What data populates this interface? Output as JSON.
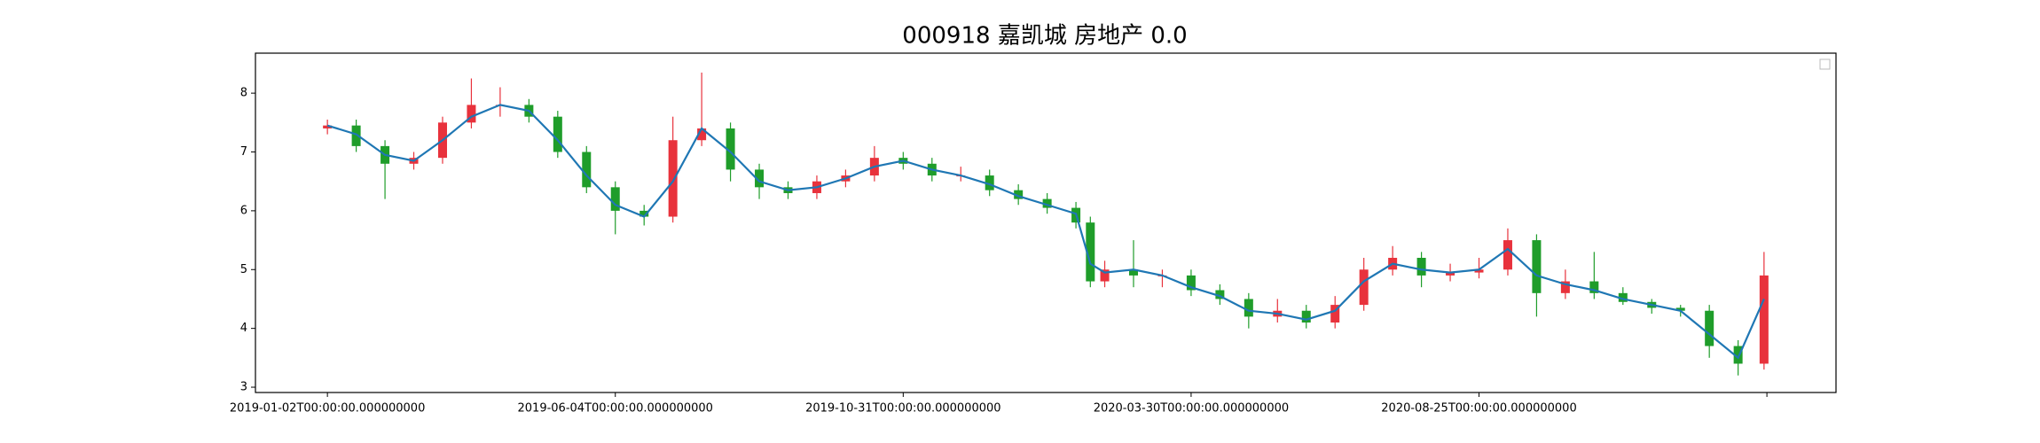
{
  "chart_data": {
    "type": "candlestick",
    "title": "000918 嘉凯城 房地产 0.0",
    "x": [
      0,
      10,
      20,
      30,
      40,
      50,
      60,
      70,
      80,
      90,
      100,
      110,
      120,
      130,
      140,
      150,
      160,
      170,
      180,
      190,
      200,
      210,
      220,
      230,
      240,
      250,
      260,
      265,
      270,
      280,
      290,
      300,
      310,
      320,
      330,
      340,
      350,
      360,
      370,
      380,
      390,
      400,
      410,
      420,
      430,
      440,
      450,
      460,
      470,
      480,
      490,
      499
    ],
    "open": [
      7.4,
      7.45,
      7.1,
      6.8,
      6.9,
      7.5,
      7.8,
      7.8,
      7.6,
      7.0,
      6.4,
      6.0,
      5.9,
      7.2,
      7.4,
      6.7,
      6.4,
      6.3,
      6.5,
      6.6,
      6.9,
      6.8,
      6.6,
      6.6,
      6.35,
      6.2,
      6.05,
      5.8,
      4.8,
      5.0,
      4.9,
      4.9,
      4.65,
      4.5,
      4.2,
      4.3,
      4.1,
      4.4,
      5.0,
      5.2,
      4.9,
      4.95,
      5.0,
      5.5,
      4.6,
      4.8,
      4.6,
      4.45,
      4.35,
      4.3,
      3.7,
      3.4
    ],
    "high": [
      7.55,
      7.55,
      7.2,
      7.0,
      7.6,
      8.25,
      8.1,
      7.9,
      7.7,
      7.1,
      6.5,
      6.1,
      7.6,
      8.35,
      7.5,
      6.8,
      6.5,
      6.6,
      6.7,
      7.1,
      7.0,
      6.9,
      6.75,
      6.7,
      6.45,
      6.3,
      6.15,
      5.9,
      5.15,
      5.5,
      5.0,
      5.0,
      4.75,
      4.6,
      4.5,
      4.4,
      4.55,
      5.2,
      5.4,
      5.3,
      5.1,
      5.2,
      5.7,
      5.6,
      5.0,
      5.3,
      4.7,
      4.5,
      4.4,
      4.4,
      3.8,
      5.3
    ],
    "low": [
      7.3,
      7.0,
      6.2,
      6.7,
      6.8,
      7.4,
      7.6,
      7.5,
      6.9,
      6.3,
      5.6,
      5.75,
      5.8,
      7.1,
      6.5,
      6.2,
      6.2,
      6.2,
      6.4,
      6.5,
      6.7,
      6.5,
      6.5,
      6.25,
      6.1,
      5.95,
      5.7,
      4.7,
      4.7,
      4.7,
      4.7,
      4.55,
      4.4,
      4.0,
      4.1,
      4.0,
      4.0,
      4.3,
      4.9,
      4.7,
      4.8,
      4.85,
      4.9,
      4.2,
      4.5,
      4.5,
      4.4,
      4.25,
      4.2,
      3.5,
      3.2,
      3.3
    ],
    "close": [
      7.45,
      7.1,
      6.8,
      6.9,
      7.5,
      7.8,
      7.8,
      7.6,
      7.0,
      6.4,
      6.0,
      5.9,
      7.2,
      7.4,
      6.7,
      6.4,
      6.3,
      6.5,
      6.6,
      6.9,
      6.8,
      6.6,
      6.6,
      6.35,
      6.2,
      6.05,
      5.8,
      4.8,
      5.0,
      4.9,
      4.9,
      4.65,
      4.5,
      4.2,
      4.3,
      4.1,
      4.4,
      5.0,
      5.2,
      4.9,
      4.95,
      5.0,
      5.5,
      4.6,
      4.8,
      4.6,
      4.45,
      4.35,
      4.3,
      3.7,
      3.4,
      4.9
    ],
    "up_color": "#e8323c",
    "down_color": "#1f9d2a",
    "line": {
      "color": "#1f77b4",
      "values": [
        7.45,
        7.3,
        6.95,
        6.85,
        7.2,
        7.6,
        7.8,
        7.7,
        7.2,
        6.6,
        6.1,
        5.9,
        6.5,
        7.4,
        7.0,
        6.5,
        6.35,
        6.4,
        6.55,
        6.75,
        6.85,
        6.7,
        6.6,
        6.45,
        6.25,
        6.1,
        5.95,
        5.1,
        4.95,
        5.0,
        4.9,
        4.7,
        4.55,
        4.3,
        4.25,
        4.15,
        4.3,
        4.8,
        5.1,
        5.0,
        4.95,
        5.0,
        5.35,
        4.9,
        4.75,
        4.65,
        4.5,
        4.4,
        4.3,
        3.9,
        3.5,
        4.5
      ]
    },
    "xlim": [
      -25,
      524
    ],
    "ylim": [
      2.91,
      8.68
    ],
    "xticks": [
      {
        "value": 0,
        "label": "2019-01-02T00:00:00.000000000"
      },
      {
        "value": 100,
        "label": "2019-06-04T00:00:00.000000000"
      },
      {
        "value": 200,
        "label": "2019-10-31T00:00:00.000000000"
      },
      {
        "value": 300,
        "label": "2020-03-30T00:00:00.000000000"
      },
      {
        "value": 400,
        "label": "2020-08-25T00:00:00.000000000"
      },
      {
        "value": 500,
        "label": null
      }
    ],
    "yticks": [
      3,
      4,
      5,
      6,
      7,
      8
    ]
  }
}
